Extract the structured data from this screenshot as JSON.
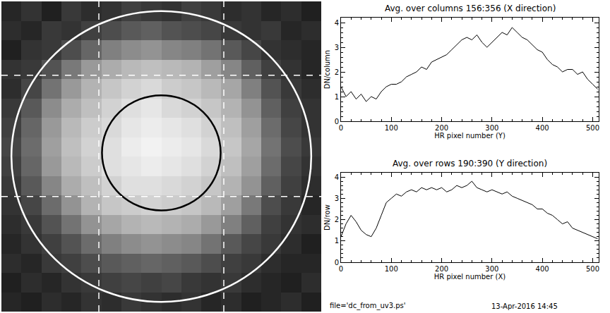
{
  "chart_data": [
    {
      "type": "heatmap",
      "tick_labels": false,
      "xlim": [
        0,
        512
      ],
      "ylim": [
        0,
        512
      ],
      "x": [
        16,
        48,
        80,
        112,
        144,
        176,
        208,
        240,
        272,
        304,
        336,
        368,
        400,
        432,
        464,
        496
      ],
      "y": [
        496,
        464,
        432,
        400,
        368,
        336,
        304,
        272,
        240,
        208,
        176,
        144,
        112,
        80,
        48,
        16
      ],
      "z": [
        [
          0.6,
          0.8,
          0.5,
          0.9,
          0.7,
          0.8,
          1.0,
          0.9,
          0.8,
          1.0,
          0.9,
          0.7,
          0.8,
          0.6,
          0.7,
          0.5
        ],
        [
          0.7,
          0.6,
          0.9,
          0.8,
          1.0,
          1.2,
          1.4,
          1.5,
          1.3,
          1.2,
          1.1,
          0.9,
          0.8,
          0.9,
          0.6,
          0.7
        ],
        [
          0.5,
          0.8,
          0.9,
          1.2,
          1.6,
          2.0,
          2.2,
          2.3,
          2.1,
          2.0,
          1.8,
          1.4,
          1.1,
          0.8,
          0.7,
          0.6
        ],
        [
          0.8,
          0.9,
          1.3,
          1.9,
          2.4,
          2.7,
          2.9,
          3.0,
          2.9,
          2.8,
          2.5,
          2.1,
          1.5,
          1.0,
          0.8,
          0.6
        ],
        [
          0.7,
          1.1,
          1.8,
          2.4,
          2.8,
          3.1,
          3.3,
          3.4,
          3.2,
          3.1,
          2.9,
          2.6,
          2.0,
          1.3,
          0.9,
          0.7
        ],
        [
          0.9,
          1.4,
          2.2,
          2.7,
          3.0,
          3.3,
          3.5,
          3.6,
          3.4,
          3.3,
          3.1,
          2.8,
          2.3,
          1.5,
          1.0,
          0.8
        ],
        [
          1.0,
          1.6,
          2.4,
          2.9,
          3.2,
          3.4,
          3.6,
          3.7,
          3.6,
          3.5,
          3.3,
          3.0,
          2.5,
          1.7,
          1.1,
          0.8
        ],
        [
          1.1,
          1.7,
          2.5,
          3.0,
          3.3,
          3.5,
          3.7,
          3.8,
          3.7,
          3.6,
          3.4,
          3.1,
          2.6,
          1.8,
          1.2,
          0.9
        ],
        [
          1.0,
          1.6,
          2.4,
          2.9,
          3.2,
          3.5,
          3.6,
          3.7,
          3.6,
          3.5,
          3.3,
          3.0,
          2.5,
          1.7,
          1.1,
          0.8
        ],
        [
          0.9,
          1.4,
          2.1,
          2.7,
          3.0,
          3.3,
          3.5,
          3.5,
          3.4,
          3.3,
          3.1,
          2.8,
          2.3,
          1.5,
          1.0,
          0.7
        ],
        [
          0.8,
          1.1,
          1.7,
          2.3,
          2.8,
          3.1,
          3.2,
          3.3,
          3.2,
          3.1,
          2.9,
          2.5,
          1.9,
          1.2,
          0.9,
          0.6
        ],
        [
          0.7,
          0.9,
          1.3,
          1.8,
          2.3,
          2.6,
          2.8,
          2.9,
          2.8,
          2.7,
          2.4,
          2.0,
          1.5,
          1.0,
          0.8,
          0.7
        ],
        [
          0.6,
          0.8,
          1.0,
          1.3,
          1.7,
          2.0,
          2.2,
          2.3,
          2.2,
          2.1,
          1.8,
          1.4,
          1.1,
          0.9,
          0.7,
          0.5
        ],
        [
          0.7,
          0.6,
          0.9,
          1.0,
          1.2,
          1.4,
          1.5,
          1.6,
          1.5,
          1.4,
          1.2,
          1.0,
          0.9,
          0.7,
          0.6,
          0.6
        ],
        [
          0.5,
          0.7,
          0.6,
          0.8,
          0.9,
          1.0,
          1.1,
          1.0,
          1.1,
          0.9,
          0.8,
          0.9,
          0.7,
          0.6,
          0.5,
          0.7
        ],
        [
          0.6,
          0.5,
          0.7,
          0.6,
          0.8,
          0.7,
          0.9,
          0.8,
          0.7,
          0.8,
          0.6,
          0.7,
          0.5,
          0.6,
          0.7,
          0.5
        ]
      ],
      "zlim": [
        0,
        4
      ],
      "circles": [
        {
          "center": [
            256,
            256
          ],
          "radius": 240,
          "color": "#ffffff"
        },
        {
          "center": [
            256,
            262
          ],
          "radius": 95,
          "color": "#000000"
        }
      ],
      "dashed_lines": {
        "x": [
          156,
          356
        ],
        "y": [
          190,
          390
        ],
        "color": "#ffffff"
      }
    },
    {
      "type": "line",
      "title": "Avg. over columns 156:356 (X direction)",
      "x_label": "HR pixel number (Y)",
      "y_label": "DN/column",
      "color": "#000000",
      "grid": false,
      "xlim": [
        0,
        512
      ],
      "ylim": [
        0,
        4.2
      ],
      "xticks": [
        0,
        100,
        200,
        300,
        400,
        500
      ],
      "yticks": [
        0,
        1,
        2,
        3,
        4
      ],
      "x": [
        0,
        10,
        20,
        30,
        40,
        50,
        60,
        70,
        80,
        90,
        100,
        110,
        120,
        130,
        140,
        150,
        160,
        170,
        180,
        190,
        200,
        210,
        220,
        230,
        240,
        250,
        260,
        270,
        280,
        290,
        300,
        310,
        320,
        330,
        340,
        350,
        360,
        370,
        380,
        390,
        400,
        410,
        420,
        430,
        440,
        450,
        460,
        470,
        480,
        490,
        500,
        510
      ],
      "values": [
        1.4,
        1.0,
        1.2,
        0.9,
        1.1,
        0.8,
        1.0,
        0.9,
        1.2,
        1.4,
        1.5,
        1.5,
        1.6,
        1.8,
        1.9,
        2.0,
        2.2,
        2.1,
        2.4,
        2.5,
        2.6,
        2.7,
        2.9,
        3.1,
        3.3,
        3.4,
        3.3,
        3.5,
        3.2,
        3.0,
        3.2,
        3.4,
        3.6,
        3.5,
        3.8,
        3.6,
        3.4,
        3.3,
        3.1,
        2.9,
        2.8,
        2.5,
        2.3,
        2.2,
        2.0,
        2.1,
        2.1,
        1.9,
        2.0,
        1.7,
        1.5,
        1.3
      ]
    },
    {
      "type": "line",
      "title": "Avg. over rows 190:390 (Y direction)",
      "x_label": "HR pixel number (X)",
      "y_label": "DN/row",
      "color": "#000000",
      "grid": false,
      "xlim": [
        0,
        512
      ],
      "ylim": [
        0,
        4.2
      ],
      "xticks": [
        0,
        100,
        200,
        300,
        400,
        500
      ],
      "yticks": [
        0,
        1,
        2,
        3,
        4
      ],
      "x": [
        0,
        10,
        20,
        30,
        40,
        50,
        60,
        70,
        80,
        90,
        100,
        110,
        120,
        130,
        140,
        150,
        160,
        170,
        180,
        190,
        200,
        210,
        220,
        230,
        240,
        250,
        260,
        270,
        280,
        290,
        300,
        310,
        320,
        330,
        340,
        350,
        360,
        370,
        380,
        390,
        400,
        410,
        420,
        430,
        440,
        450,
        460,
        470,
        480,
        490,
        500,
        510
      ],
      "values": [
        1.2,
        1.8,
        2.2,
        1.9,
        1.5,
        1.3,
        1.2,
        1.6,
        2.2,
        2.8,
        3.0,
        3.2,
        3.1,
        3.3,
        3.4,
        3.3,
        3.5,
        3.4,
        3.5,
        3.4,
        3.5,
        3.3,
        3.4,
        3.6,
        3.5,
        3.6,
        3.8,
        3.5,
        3.4,
        3.3,
        3.4,
        3.3,
        3.2,
        3.3,
        3.1,
        3.0,
        2.9,
        2.8,
        2.7,
        2.5,
        2.5,
        2.3,
        2.2,
        2.0,
        1.8,
        1.9,
        1.6,
        1.5,
        1.4,
        1.3,
        1.2,
        1.1
      ]
    }
  ],
  "footer": {
    "left": "file='dc_from_uv3.ps'",
    "right": "13-Apr-2016 14:45"
  }
}
